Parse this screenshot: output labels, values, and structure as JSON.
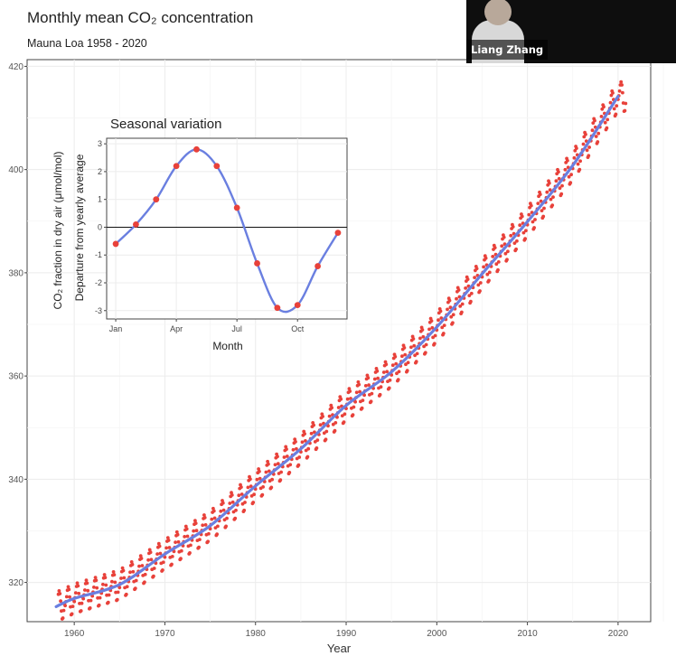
{
  "presenter": {
    "name": "Liang Zhang"
  },
  "chart_data": [
    {
      "type": "scatter",
      "title": "Monthly mean CO₂ concentration",
      "subtitle": "Mauna Loa 1958 - 2020",
      "xlabel": "Year",
      "ylabel": "CO₂ fraction in dry air (μmol/mol)",
      "xlim": [
        1954.8,
        2023.6
      ],
      "ylim": [
        312.4,
        421.3
      ],
      "x_ticks": [
        1960,
        1970,
        1980,
        1990,
        2000,
        2010,
        2020
      ],
      "y_ticks": [
        320,
        340,
        360,
        380,
        400,
        420
      ],
      "grid": true,
      "series": [
        {
          "kind": "points",
          "color": "#e8413a",
          "x_start": 1958.25,
          "x_end": 2020.9,
          "monthly": true,
          "trend_points": [
            [
              1958,
              315.3
            ],
            [
              1960,
              316.9
            ],
            [
              1965,
              319.6
            ],
            [
              1970,
              325.5
            ],
            [
              1975,
              331.0
            ],
            [
              1980,
              338.7
            ],
            [
              1985,
              345.9
            ],
            [
              1990,
              354.3
            ],
            [
              1995,
              360.8
            ],
            [
              2000,
              369.5
            ],
            [
              2005,
              379.8
            ],
            [
              2010,
              389.9
            ],
            [
              2015,
              400.8
            ],
            [
              2020,
              414.2
            ]
          ],
          "seasonal_offsets": [
            -0.6,
            0.1,
            1.0,
            2.2,
            2.8,
            2.2,
            0.7,
            -1.3,
            -2.9,
            -2.8,
            -1.4,
            -0.2
          ]
        },
        {
          "kind": "smooth-line",
          "color": "#6a7fe0",
          "points": [
            [
              1958,
              315.3
            ],
            [
              1960,
              316.9
            ],
            [
              1965,
              319.6
            ],
            [
              1970,
              325.5
            ],
            [
              1975,
              331.0
            ],
            [
              1980,
              338.7
            ],
            [
              1985,
              345.9
            ],
            [
              1990,
              354.3
            ],
            [
              1995,
              360.8
            ],
            [
              2000,
              369.5
            ],
            [
              2005,
              379.8
            ],
            [
              2010,
              389.9
            ],
            [
              2015,
              400.8
            ],
            [
              2020,
              414.2
            ]
          ]
        }
      ]
    },
    {
      "type": "line",
      "placement": "inset-top-left",
      "title": "Seasonal variation",
      "xlabel": "Month",
      "ylabel": "Departure from yearly average",
      "x_tick_labels": [
        "Jan",
        "Apr",
        "Jul",
        "Oct"
      ],
      "x_tick_positions": [
        1,
        4,
        7,
        10
      ],
      "xlim": [
        0.55,
        12.45
      ],
      "ylim": [
        -3.3,
        3.2
      ],
      "y_ticks": [
        -3,
        -2,
        -1,
        0,
        1,
        2,
        3
      ],
      "grid": true,
      "reference_line": 0,
      "points": [
        [
          1,
          -0.6
        ],
        [
          2,
          0.1
        ],
        [
          3,
          1.0
        ],
        [
          4,
          2.2
        ],
        [
          5,
          2.8
        ],
        [
          6,
          2.2
        ],
        [
          7,
          0.7
        ],
        [
          8,
          -1.3
        ],
        [
          9,
          -2.9
        ],
        [
          10,
          -2.8
        ],
        [
          11,
          -1.4
        ],
        [
          12,
          -0.2
        ]
      ],
      "point_color": "#e8413a",
      "line_color": "#6a7fe0"
    }
  ]
}
